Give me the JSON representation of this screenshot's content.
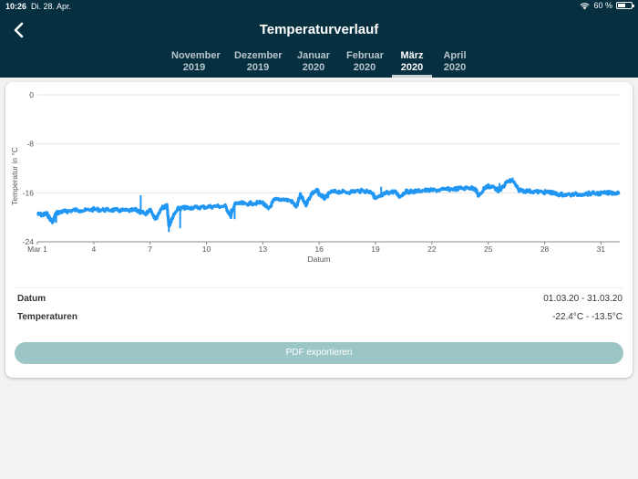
{
  "status_bar": {
    "time": "10:26",
    "date": "Di. 28. Apr.",
    "battery": "60 %",
    "battery_level": 0.6,
    "icons": [
      "wifi-icon",
      "battery-icon"
    ]
  },
  "header": {
    "title": "Temperaturverlauf",
    "back_icon": "chevron-left-icon"
  },
  "tabs": [
    {
      "month": "November",
      "year": "2019",
      "active": false
    },
    {
      "month": "Dezember",
      "year": "2019",
      "active": false
    },
    {
      "month": "Januar",
      "year": "2020",
      "active": false
    },
    {
      "month": "Februar",
      "year": "2020",
      "active": false
    },
    {
      "month": "März",
      "year": "2020",
      "active": true
    },
    {
      "month": "April",
      "year": "2020",
      "active": false
    }
  ],
  "chart_data": {
    "type": "line",
    "xlabel": "Datum",
    "ylabel": "Temperatur in °C",
    "xlim": [
      1,
      32
    ],
    "ylim": [
      -24,
      0
    ],
    "y_ticks": [
      0,
      -8,
      -16,
      -24
    ],
    "x_ticks": [
      {
        "day": 1,
        "label": "Mar 1"
      },
      {
        "day": 4,
        "label": "4"
      },
      {
        "day": 7,
        "label": "7"
      },
      {
        "day": 10,
        "label": "10"
      },
      {
        "day": 13,
        "label": "13"
      },
      {
        "day": 16,
        "label": "16"
      },
      {
        "day": 19,
        "label": "19"
      },
      {
        "day": 22,
        "label": "22"
      },
      {
        "day": 25,
        "label": "25"
      },
      {
        "day": 28,
        "label": "28"
      },
      {
        "day": 31,
        "label": "31"
      }
    ],
    "grid": true,
    "series": [
      {
        "color": "#2196f3",
        "x": [
          1,
          1.3,
          1.5,
          1.8,
          2,
          2.3,
          2.6,
          3,
          3.5,
          4,
          4.5,
          5,
          5.5,
          6,
          6.3,
          6.5,
          6.8,
          7,
          7.3,
          7.6,
          7.9,
          8,
          8.2,
          8.5,
          8.8,
          9,
          9.5,
          10,
          10.5,
          11,
          11.3,
          11.5,
          11.8,
          12,
          12.5,
          13,
          13.3,
          13.6,
          14,
          14.5,
          14.8,
          15,
          15.3,
          15.6,
          15.9,
          16,
          16.3,
          16.6,
          17,
          17.5,
          18,
          18.5,
          18.8,
          19,
          19.3,
          19.6,
          20,
          20.3,
          20.6,
          21,
          21.5,
          22,
          22.5,
          23,
          23.5,
          24,
          24.3,
          24.5,
          24.8,
          25,
          25.3,
          25.6,
          26,
          26.3,
          26.6,
          27,
          27.5,
          28,
          28.3,
          28.6,
          29,
          29.5,
          30,
          30.5,
          31,
          31.5,
          32
        ],
        "y": [
          -19.5,
          -19.6,
          -19.4,
          -20.8,
          -19.3,
          -19.1,
          -19,
          -18.8,
          -18.9,
          -18.7,
          -18.8,
          -18.8,
          -18.9,
          -18.9,
          -18.8,
          -19.2,
          -19.4,
          -18.6,
          -20.3,
          -18.5,
          -18.1,
          -21.5,
          -20,
          -18.6,
          -18.5,
          -18.4,
          -18.4,
          -18.3,
          -18.2,
          -18.2,
          -19.8,
          -17.9,
          -17.7,
          -17.8,
          -17.7,
          -17.6,
          -18.7,
          -17.2,
          -17,
          -17.3,
          -18.3,
          -16.4,
          -17.9,
          -16.1,
          -15.6,
          -16.2,
          -16.9,
          -15.9,
          -15.8,
          -15.9,
          -15.7,
          -15.7,
          -15.9,
          -17,
          -16.5,
          -16,
          -15.8,
          -16.6,
          -15.8,
          -15.8,
          -15.6,
          -15.6,
          -15.5,
          -15.4,
          -15.3,
          -15.2,
          -15.3,
          -16.6,
          -15.2,
          -14.9,
          -15.1,
          -15.7,
          -14.2,
          -14,
          -15.5,
          -15.7,
          -15.8,
          -15.9,
          -15.9,
          -16.2,
          -16.3,
          -16.3,
          -16.2,
          -16.1,
          -16.1,
          -16,
          -16
        ],
        "highs": [
          [
            6.5,
            -16.4
          ],
          [
            11.3,
            -18.6
          ],
          [
            24.3,
            -15.0
          ],
          [
            25.6,
            -14.4
          ],
          [
            26.3,
            -13.5
          ],
          [
            19.3,
            -15.0
          ]
        ],
        "lows": [
          [
            8,
            -22.4
          ],
          [
            2,
            -20.9
          ],
          [
            8.6,
            -21.8
          ],
          [
            11.5,
            -20.3
          ]
        ]
      }
    ]
  },
  "info": {
    "date_label": "Datum",
    "date_value": "01.03.20 - 31.03.20",
    "temp_label": "Temperaturen",
    "temp_value": "-22.4°C - -13.5°C"
  },
  "export_button_label": "PDF exportieren"
}
